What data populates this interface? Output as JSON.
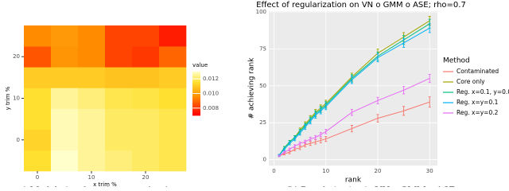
{
  "chart_data": [
    {
      "type": "heatmap",
      "xlabel": "x trim %",
      "ylabel": "y trim %",
      "x": [
        0,
        5,
        10,
        15,
        20,
        25
      ],
      "y": [
        -5,
        0,
        5,
        10,
        15,
        20,
        25
      ],
      "z": [
        [
          0.0115,
          0.013,
          0.0125,
          0.0122,
          0.012,
          0.0118
        ],
        [
          0.0112,
          0.0128,
          0.0125,
          0.012,
          0.012,
          0.0118
        ],
        [
          0.0115,
          0.0128,
          0.0125,
          0.012,
          0.012,
          0.0118
        ],
        [
          0.0115,
          0.0125,
          0.0122,
          0.0118,
          0.0117,
          0.0115
        ],
        [
          0.011,
          0.011,
          0.011,
          0.0108,
          0.0108,
          0.011
        ],
        [
          0.0085,
          0.0097,
          0.0095,
          0.0082,
          0.008,
          0.0088
        ],
        [
          0.0095,
          0.0098,
          0.0095,
          0.0082,
          0.0082,
          0.0075
        ]
      ],
      "xlim": [
        -2.5,
        27.5
      ],
      "ylim": [
        -7.5,
        27.5
      ],
      "xticks": [
        0,
        10,
        20
      ],
      "yticks": [
        0,
        10,
        20
      ],
      "colorbar_title": "value",
      "colorscale": [
        [
          0.007,
          "#ff0000"
        ],
        [
          0.0095,
          "#ff8c00"
        ],
        [
          0.0115,
          "#ffe030"
        ],
        [
          0.013,
          "#ffffcc"
        ]
      ],
      "colorbar_ticks": [
        0.008,
        {
          "value": 0.01,
          "label": "0.010"
        },
        0.012
      ],
      "caption": ") Modularity clustering score (x, y)"
    },
    {
      "type": "line",
      "title": "Effect of regularization on VN o GMM o ASE; rho=0.7",
      "xlabel": "rank",
      "ylabel": "# achieving rank",
      "legend_title": "Method",
      "x": [
        1,
        2,
        3,
        4,
        5,
        6,
        7,
        8,
        9,
        10,
        15,
        20,
        25,
        30
      ],
      "series": [
        {
          "name": "Contaminated",
          "color": "#F8766D",
          "values": [
            2.5,
            4,
            5,
            7,
            8,
            10,
            11,
            12,
            13,
            14,
            21,
            28,
            33,
            39
          ],
          "errors": [
            0.5,
            0.8,
            1,
            1,
            1.2,
            1.3,
            1.4,
            1.5,
            1.6,
            1.7,
            2.2,
            2.6,
            3,
            3.5
          ]
        },
        {
          "name": "Core only",
          "color": "#A3A500",
          "values": [
            3,
            8,
            12,
            15,
            20,
            24,
            28,
            32,
            35,
            38,
            56,
            72,
            83,
            94
          ],
          "errors": [
            0.5,
            0.8,
            1,
            1.2,
            1.4,
            1.6,
            1.8,
            2,
            2,
            2.2,
            2.5,
            2.8,
            3,
            3
          ]
        },
        {
          "name": "Reg. x=0.1, y=0.0",
          "color": "#00BF7D",
          "values": [
            3,
            8,
            12,
            15,
            19,
            23,
            27,
            31,
            34,
            37,
            55,
            70,
            81,
            92
          ],
          "errors": [
            0.5,
            0.8,
            1,
            1.2,
            1.4,
            1.6,
            1.8,
            2,
            2,
            2.2,
            2.5,
            2.8,
            3,
            3
          ]
        },
        {
          "name": "Reg. x=y=0.1",
          "color": "#00B0F6",
          "values": [
            3,
            7,
            11,
            14,
            18,
            22,
            26,
            30,
            33,
            36,
            54,
            69,
            79,
            89
          ],
          "errors": [
            0.5,
            0.8,
            1,
            1.2,
            1.4,
            1.6,
            1.8,
            2,
            2,
            2.2,
            2.5,
            2.8,
            3,
            3
          ]
        },
        {
          "name": "Reg. x=y=0.2",
          "color": "#E76BF3",
          "values": [
            2.5,
            5,
            7,
            9,
            11,
            12,
            14,
            15,
            17,
            19,
            32,
            40,
            47,
            55
          ],
          "errors": [
            0.5,
            0.7,
            0.8,
            1,
            1,
            1.1,
            1.2,
            1.3,
            1.4,
            1.5,
            2,
            2.2,
            2.5,
            2.8
          ]
        }
      ],
      "xlim": [
        -1,
        31.5
      ],
      "ylim": [
        -4,
        100.5
      ],
      "xticks": [
        0,
        10,
        20,
        30
      ],
      "yticks": [
        0,
        25,
        50,
        75,
        100
      ],
      "grid": true,
      "caption": "(b) Regularization in VN o GMM o ASE"
    }
  ]
}
